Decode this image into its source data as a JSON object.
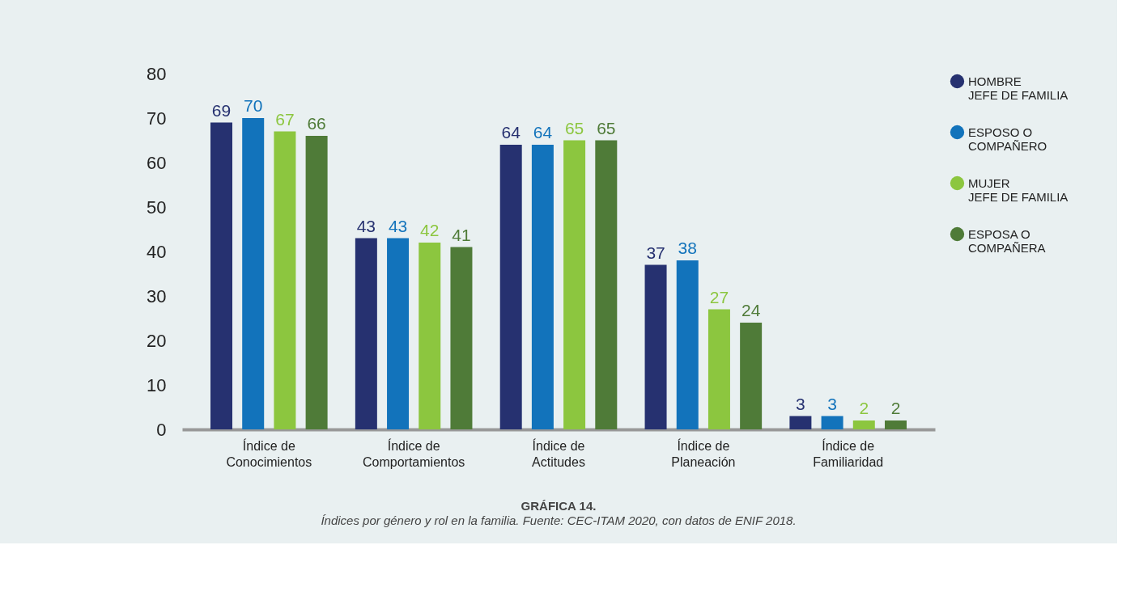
{
  "chart_data": {
    "type": "bar",
    "title": "GRÁFICA 14.",
    "annotations": [
      "Índices por género y rol en la familia.  Fuente: CEC-ITAM 2020, con datos de ENIF 2018."
    ],
    "categories": [
      "Índice de\nConocimientos",
      "Índice de\nComportamientos",
      "Índice de\nActitudes",
      "Índice de\nPlaneación",
      "Índice de\nFamiliaridad"
    ],
    "series": [
      {
        "name": "HOMBRE\nJEFE DE FAMILIA",
        "color": "#263170",
        "values": [
          69,
          43,
          64,
          37,
          3
        ]
      },
      {
        "name": "ESPOSO O\nCOMPAÑERO",
        "color": "#1273bb",
        "values": [
          70,
          43,
          64,
          38,
          3
        ]
      },
      {
        "name": "MUJER\nJEFE DE FAMILIA",
        "color": "#8cc63f",
        "values": [
          67,
          42,
          65,
          27,
          2
        ]
      },
      {
        "name": "ESPOSA O\nCOMPAÑERA",
        "color": "#4f7b38",
        "values": [
          66,
          41,
          65,
          24,
          2
        ]
      }
    ],
    "ylim": [
      0,
      80
    ],
    "yticks": [
      0,
      10,
      20,
      30,
      40,
      50,
      60,
      70,
      80
    ],
    "data_labels": true,
    "grid": false,
    "legend": "right"
  }
}
